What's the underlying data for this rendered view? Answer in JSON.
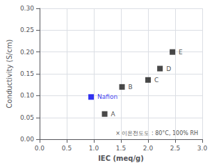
{
  "chart_data": {
    "type": "scatter",
    "x": [
      0.95,
      1.2,
      1.52,
      2.0,
      2.22,
      2.45
    ],
    "values": [
      0.097,
      0.058,
      0.12,
      0.136,
      0.162,
      0.2
    ],
    "labels": [
      "Nafion",
      "A",
      "B",
      "C",
      "D",
      "E"
    ],
    "colors": [
      "#0000EE",
      "#1a1a1a",
      "#1a1a1a",
      "#1a1a1a",
      "#1a1a1a",
      "#1a1a1a"
    ],
    "marker": "square",
    "x_label": "IEC (meq/g)",
    "y_label": "Conductivity (S/cm)",
    "xlim": [
      0,
      3.0
    ],
    "ylim": [
      0,
      0.3
    ],
    "xticks": [
      {
        "value": 0,
        "label": "0.0"
      },
      0.5,
      {
        "value": 1.0,
        "label": "1.0"
      },
      1.5,
      {
        "value": 2.0,
        "label": "2.0"
      },
      2.5,
      {
        "value": 3.0,
        "label": "3.0"
      }
    ],
    "yticks": [
      {
        "value": 0,
        "label": "0.00"
      },
      0.05,
      {
        "value": 0.1,
        "label": "0.10"
      },
      0.15,
      {
        "value": 0.2,
        "label": "0.20"
      },
      0.25,
      {
        "value": 0.3,
        "label": "0.30"
      }
    ],
    "annotation": "× 이온전도도 : 80°C, 100% RH",
    "grid": true
  }
}
